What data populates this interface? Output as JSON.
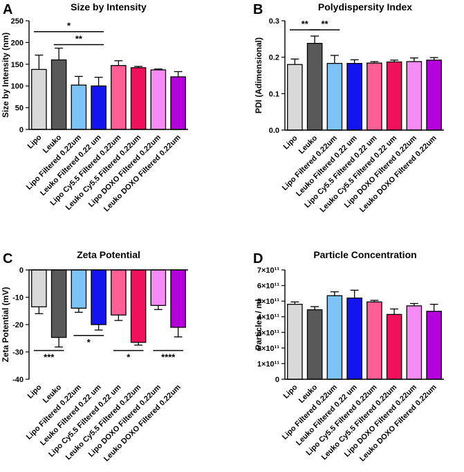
{
  "chart_data": [
    {
      "panel": "A",
      "type": "bar",
      "title": "Size by Intensity",
      "xlabel": "",
      "ylabel": "Size by Intensity (nm)",
      "ylim": [
        0,
        250
      ],
      "yticks": [
        0,
        50,
        100,
        150,
        200,
        250
      ],
      "ytick_labels": [
        "0",
        "50",
        "100",
        "150",
        "200",
        "250"
      ],
      "categories": [
        "Lipo",
        "Leuko",
        "Lipo Filtered 0.22um",
        "Leuko Filtered 0.22 um",
        "Lipo Cy5.5 Filtered 0.22um",
        "Leuko Cy5.5 Filtered 0.22um",
        "Lipo DOXO Filtered 0.22um",
        "Leuko DOXO Filtered 0.22um"
      ],
      "values": [
        138,
        160,
        102,
        100,
        147,
        142,
        137,
        121
      ],
      "errors": [
        33,
        27,
        20,
        20,
        11,
        3,
        2,
        12
      ],
      "colors": [
        "#d9d9d9",
        "#595959",
        "#7ec3f5",
        "#1414f0",
        "#ff5f95",
        "#f0105c",
        "#f58cf5",
        "#b400dc"
      ],
      "significance": [
        {
          "from": 0,
          "to": 3,
          "y": 225,
          "label": "*"
        },
        {
          "from": 1,
          "to": 3,
          "y": 195,
          "label": "**"
        }
      ]
    },
    {
      "panel": "B",
      "type": "bar",
      "title": "Polydispersity Index",
      "xlabel": "",
      "ylabel": "PDI (Adimensional)",
      "ylim": [
        0,
        0.3
      ],
      "yticks": [
        0,
        0.1,
        0.2,
        0.3
      ],
      "ytick_labels": [
        "0.0",
        "0.1",
        "0.2",
        "0.3"
      ],
      "categories": [
        "Lipo",
        "Leuko",
        "Lipo Filtered 0.22um",
        "Leuko Filtered 0.22 um",
        "Lipo Cy5.5 Filtered 0.22 um",
        "Leuko Cy5.5 Filtered 0.22 um",
        "Lipo DOXO Filtered 0.22um",
        "Leuko DOXO Filtered 0.22um"
      ],
      "values": [
        0.18,
        0.238,
        0.183,
        0.183,
        0.184,
        0.187,
        0.188,
        0.192
      ],
      "errors": [
        0.015,
        0.02,
        0.022,
        0.01,
        0.004,
        0.005,
        0.01,
        0.007
      ],
      "colors": [
        "#d9d9d9",
        "#595959",
        "#7ec3f5",
        "#1414f0",
        "#ff5f95",
        "#f0105c",
        "#f58cf5",
        "#b400dc"
      ],
      "significance": [
        {
          "from": 0,
          "to": 1,
          "y": 0.275,
          "label": "**"
        },
        {
          "from": 1,
          "to": 2,
          "y": 0.275,
          "label": "**"
        }
      ]
    },
    {
      "panel": "C",
      "type": "bar",
      "title": "Zeta Potential",
      "xlabel": "",
      "ylabel": "Zeta Potential (mV)",
      "ylim": [
        -40,
        0
      ],
      "yticks": [
        0,
        -10,
        -20,
        -30,
        -40
      ],
      "ytick_labels": [
        "0",
        "-10",
        "-20",
        "-30",
        "-40"
      ],
      "categories": [
        "Lipo",
        "Leuko",
        "Lipo Filtered 0.22um",
        "Leuko Filtered 0.22 um",
        "Lipo Cy5.5 Filtered 0.22 um",
        "Leuko Cy5.5 Filtered 0.22um",
        "Lipo DOXO Filtered 0.22um",
        "Leuko DOXO Filtered 0.22um"
      ],
      "values": [
        -13.5,
        -24.7,
        -14,
        -20,
        -16.5,
        -26.5,
        -13,
        -21
      ],
      "errors": [
        2.5,
        3.5,
        1.5,
        2,
        2,
        1,
        1.5,
        3.5
      ],
      "colors": [
        "#d9d9d9",
        "#595959",
        "#7ec3f5",
        "#1414f0",
        "#ff5f95",
        "#f0105c",
        "#f58cf5",
        "#b400dc"
      ],
      "significance": [
        {
          "from": 0,
          "to": 1,
          "y": -29.5,
          "label": "***"
        },
        {
          "from": 2,
          "to": 3,
          "y": -24,
          "label": "*"
        },
        {
          "from": 4,
          "to": 5,
          "y": -29.5,
          "label": "*"
        },
        {
          "from": 6,
          "to": 7,
          "y": -29.5,
          "label": "****"
        }
      ]
    },
    {
      "panel": "D",
      "type": "bar",
      "title": "Particle Concentration",
      "xlabel": "",
      "ylabel": "Particles / ml",
      "ylim": [
        0,
        700000000000.0
      ],
      "yticks": [
        0,
        100000000000.0,
        200000000000.0,
        300000000000.0,
        400000000000.0,
        500000000000.0,
        600000000000.0,
        700000000000.0
      ],
      "ytick_labels": [
        "0",
        "1×10¹¹",
        "2×10¹¹",
        "3×10¹¹",
        "4×10¹¹",
        "5×10¹¹",
        "6×10¹¹",
        "7×10¹¹"
      ],
      "categories": [
        "Lipo",
        "Leuko",
        "Lipo Filtered 0.22um",
        "Leuko Filtered 0.22 um",
        "Lipo Cy5.5 Filtered 0.22um",
        "Leuko Cy5.5 Filtered 0.22um",
        "Lipo DOXO Filtered 0.22um",
        "Leuko DOXO Filtered 0.22um"
      ],
      "values": [
        480000000000.0,
        445000000000.0,
        535000000000.0,
        520000000000.0,
        495000000000.0,
        415000000000.0,
        470000000000.0,
        435000000000.0
      ],
      "errors": [
        15000000000.0,
        20000000000.0,
        25000000000.0,
        50000000000.0,
        10000000000.0,
        35000000000.0,
        15000000000.0,
        45000000000.0
      ],
      "colors": [
        "#d9d9d9",
        "#595959",
        "#7ec3f5",
        "#1414f0",
        "#ff5f95",
        "#f0105c",
        "#f58cf5",
        "#b400dc"
      ],
      "significance": []
    }
  ]
}
